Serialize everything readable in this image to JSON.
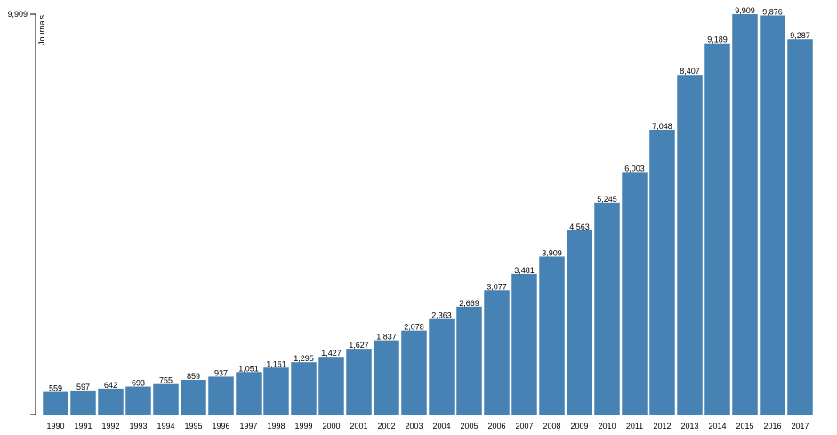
{
  "chart_data": {
    "type": "bar",
    "ylabel": "Journals",
    "ylim": [
      0,
      9909
    ],
    "y_ticks": [
      "9,909"
    ],
    "bar_color": "#4682b4",
    "categories": [
      "1990",
      "1991",
      "1992",
      "1993",
      "1994",
      "1995",
      "1996",
      "1997",
      "1998",
      "1999",
      "2000",
      "2001",
      "2002",
      "2003",
      "2004",
      "2005",
      "2006",
      "2007",
      "2008",
      "2009",
      "2010",
      "2011",
      "2012",
      "2013",
      "2014",
      "2015",
      "2016",
      "2017"
    ],
    "values": [
      559,
      597,
      642,
      693,
      755,
      859,
      937,
      1051,
      1161,
      1295,
      1427,
      1627,
      1837,
      2078,
      2363,
      2669,
      3077,
      3481,
      3909,
      4563,
      5245,
      6003,
      7048,
      8407,
      9189,
      9909,
      9876,
      9287
    ],
    "value_labels": [
      "559",
      "597",
      "642",
      "693",
      "755",
      "859",
      "937",
      "1,051",
      "1,161",
      "1,295",
      "1,427",
      "1,627",
      "1,837",
      "2,078",
      "2,363",
      "2,669",
      "3,077",
      "3,481",
      "3,909",
      "4,563",
      "5,245",
      "6,003",
      "7,048",
      "8,407",
      "9,189",
      "9,909",
      "9,876",
      "9,287"
    ]
  }
}
